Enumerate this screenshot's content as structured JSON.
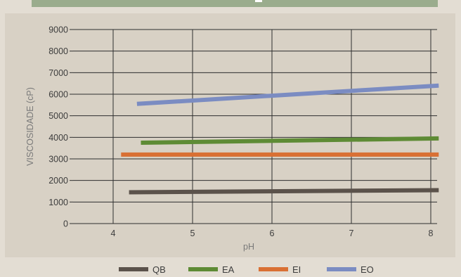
{
  "chart_data": {
    "type": "line",
    "title": "",
    "xlabel": "pH",
    "ylabel": "VISCOSIDADE (cP)",
    "x_ticks": [
      4,
      5,
      6,
      7,
      8
    ],
    "y_ticks": [
      0,
      1000,
      2000,
      3000,
      4000,
      5000,
      6000,
      7000,
      8000,
      9000
    ],
    "xlim": [
      3.5,
      8.1
    ],
    "ylim": [
      0,
      9000
    ],
    "grid": true,
    "legend_position": "bottom",
    "series": [
      {
        "name": "QB",
        "color": "#5b524b",
        "x": [
          4.2,
          8.1
        ],
        "y": [
          1450,
          1550
        ]
      },
      {
        "name": "EA",
        "color": "#5e8b35",
        "x": [
          4.35,
          8.1
        ],
        "y": [
          3750,
          3950
        ]
      },
      {
        "name": "EI",
        "color": "#d97034",
        "x": [
          4.1,
          8.1
        ],
        "y": [
          3200,
          3200
        ]
      },
      {
        "name": "EO",
        "color": "#7b8cc2",
        "x": [
          4.3,
          8.1
        ],
        "y": [
          5550,
          6400
        ]
      }
    ]
  }
}
